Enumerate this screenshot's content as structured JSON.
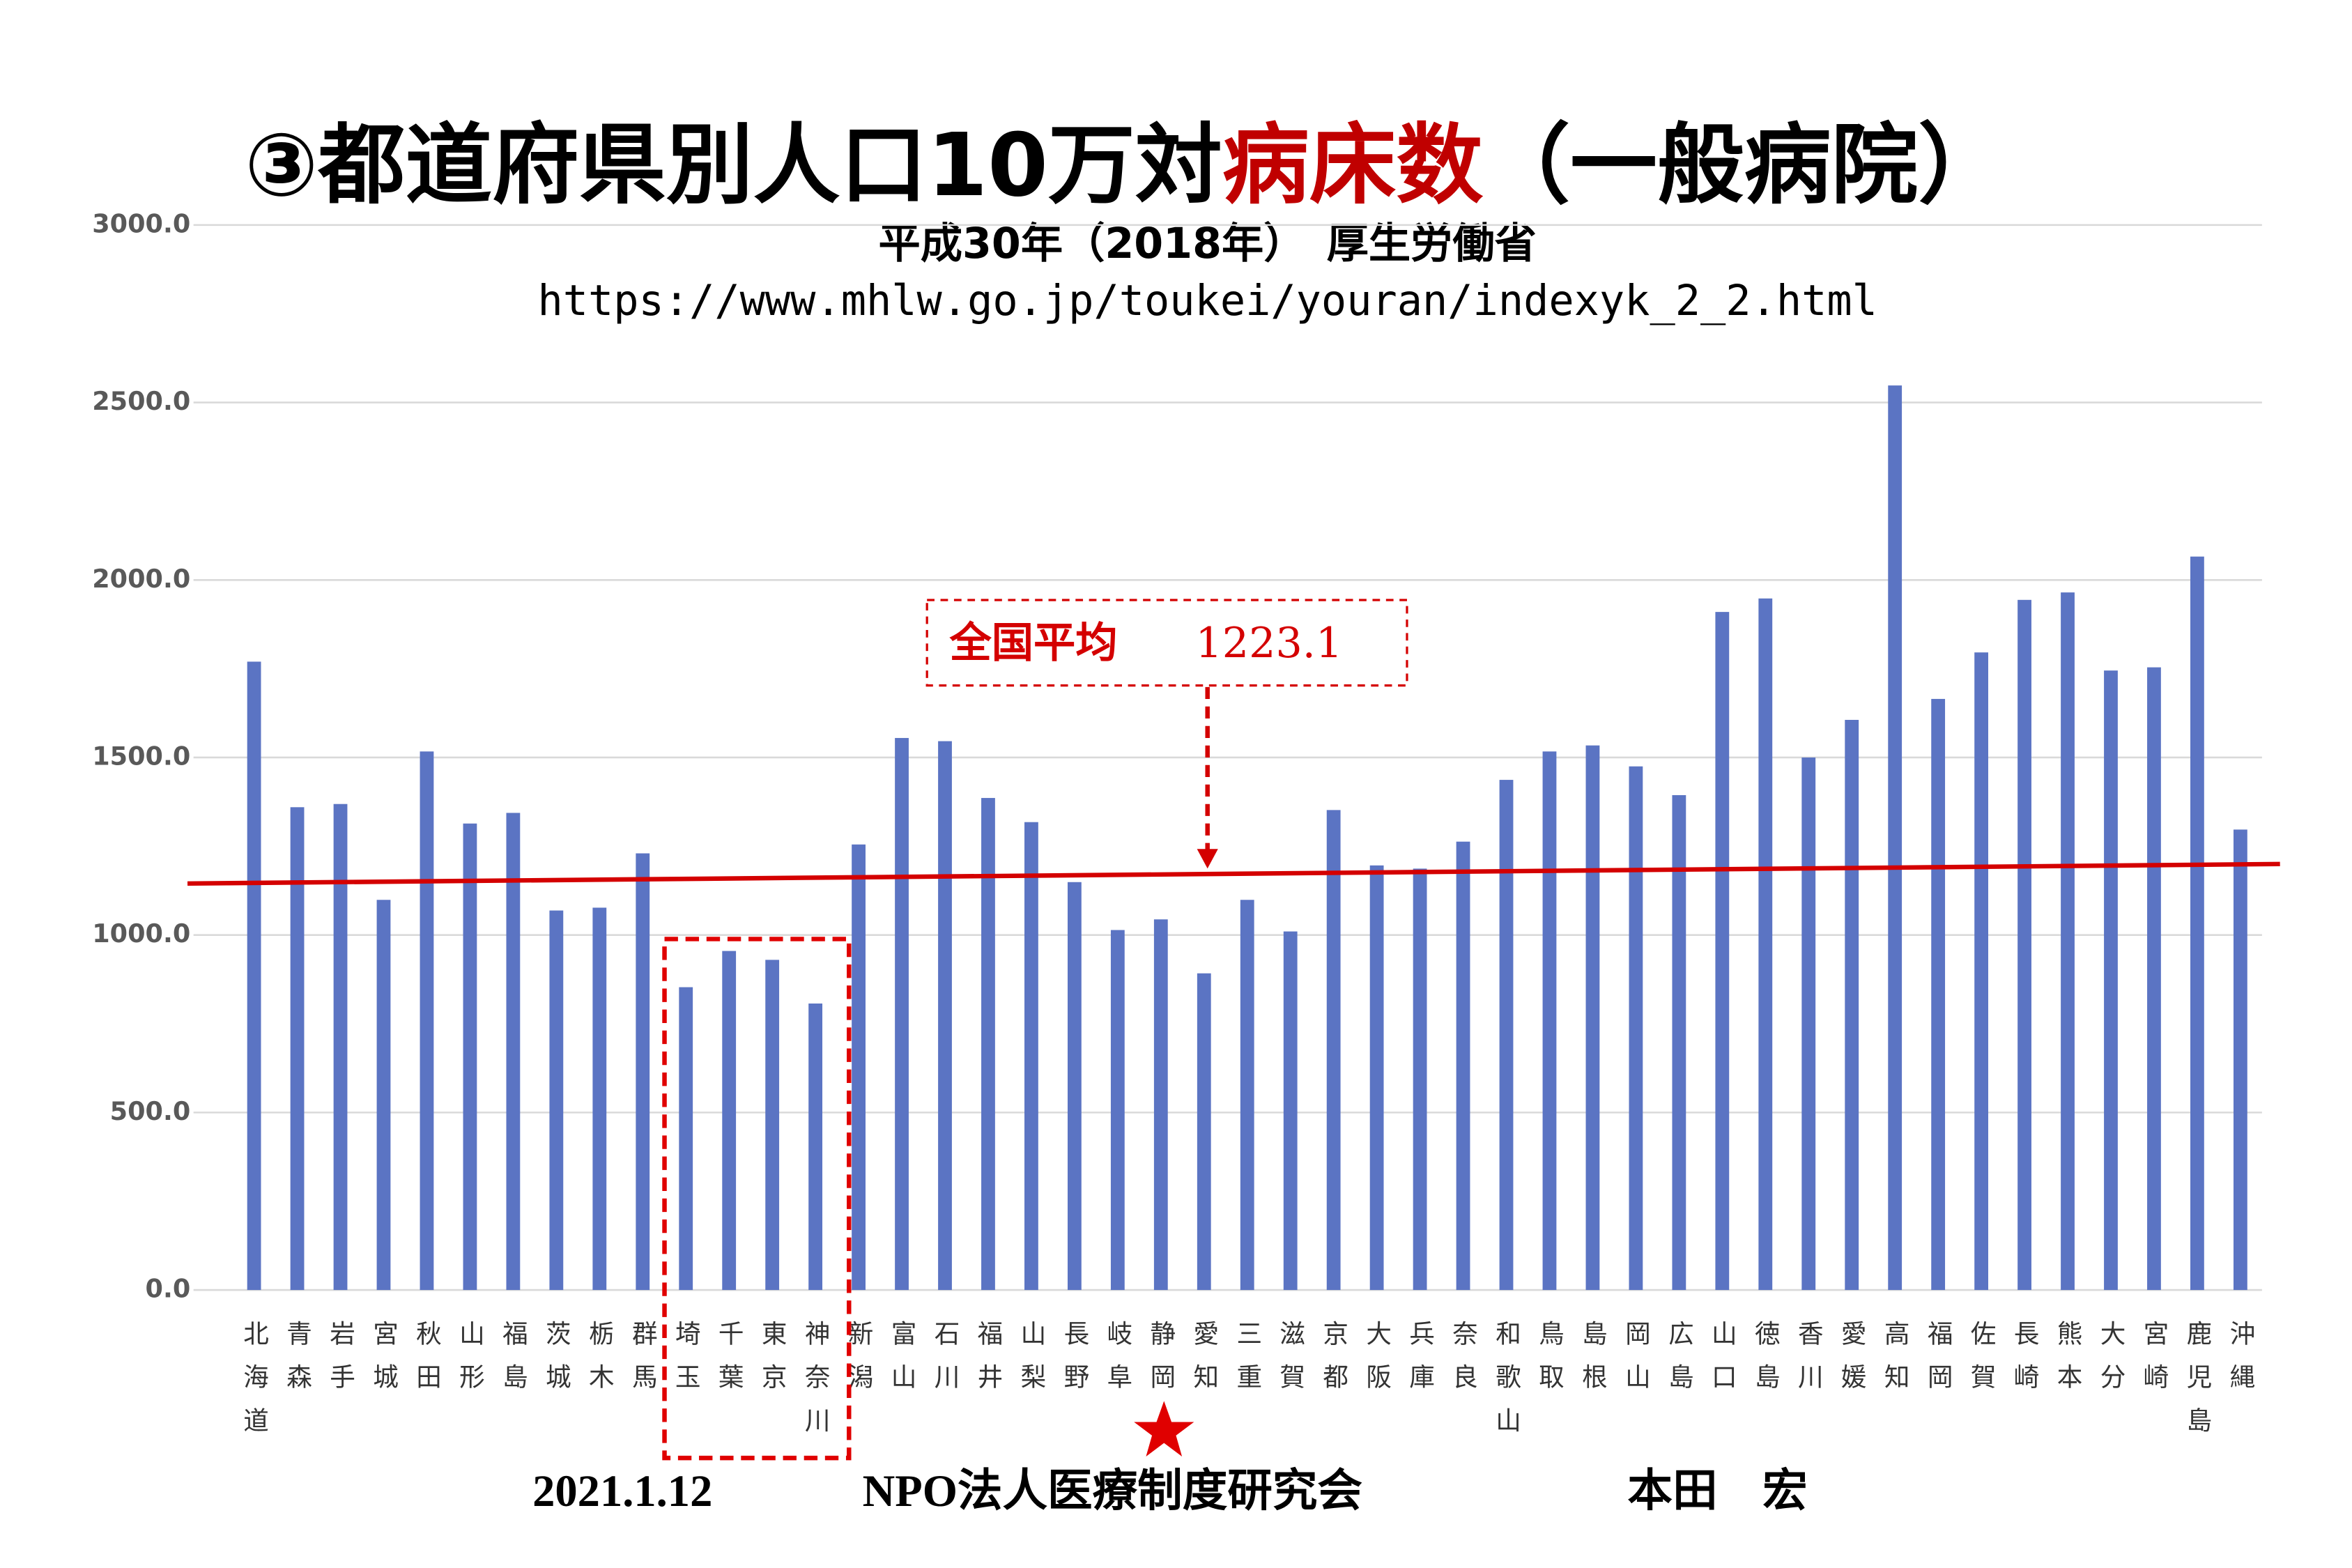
{
  "chart_data": {
    "type": "bar",
    "title": [
      "③都道府県別人口10万対",
      "病床数",
      "（一般病院）"
    ],
    "subtitle": [
      "平成30年（2018年）　厚生労働省",
      "https://www.mhlw.go.jp/toukei/youran/indexyk_2_2.html"
    ],
    "categories": [
      "北海道",
      "青森",
      "岩手",
      "宮城",
      "秋田",
      "山形",
      "福島",
      "茨城",
      "栃木",
      "群馬",
      "埼玉",
      "千葉",
      "東京",
      "神奈川",
      "新潟",
      "富山",
      "石川",
      "福井",
      "山梨",
      "長野",
      "岐阜",
      "静岡",
      "愛知",
      "三重",
      "滋賀",
      "京都",
      "大阪",
      "兵庫",
      "奈良",
      "和歌山",
      "鳥取",
      "島根",
      "岡山",
      "広島",
      "山口",
      "徳島",
      "香川",
      "愛媛",
      "高知",
      "福岡",
      "佐賀",
      "長崎",
      "熊本",
      "大分",
      "宮崎",
      "鹿児島",
      "沖縄"
    ],
    "values": [
      1770,
      1360,
      1369,
      1099,
      1517,
      1314,
      1344,
      1069,
      1077,
      1230,
      853,
      955,
      930,
      807,
      1255,
      1555,
      1546,
      1386,
      1318,
      1149,
      1014,
      1044,
      892,
      1099,
      1010,
      1352,
      1196,
      1187,
      1263,
      1437,
      1517,
      1534,
      1475,
      1394,
      1910,
      1948,
      1500,
      1606,
      2548,
      1665,
      1796,
      1944,
      1965,
      1745,
      1754,
      2066,
      1297
    ],
    "color": "#5b74c3",
    "ylim": [
      0,
      3000
    ],
    "yticks": [
      {
        "value": 0,
        "label": "0.0"
      },
      {
        "value": 500,
        "label": "500.0"
      },
      {
        "value": 1000,
        "label": "1000.0"
      },
      {
        "value": 1500,
        "label": "1500.0"
      },
      {
        "value": 2000,
        "label": "2000.0"
      },
      {
        "value": 2500,
        "label": "2500.0"
      },
      {
        "value": 3000,
        "label": "3000.0"
      }
    ],
    "grid": true,
    "trend_line": {
      "start": 1145,
      "end": 1200,
      "color": "#d40000"
    },
    "annotation": {
      "label": "全国平均",
      "value": "1223.1"
    },
    "footer": [
      "2021.1.12",
      "NPO法人医療制度研究会",
      "本田　宏"
    ]
  }
}
